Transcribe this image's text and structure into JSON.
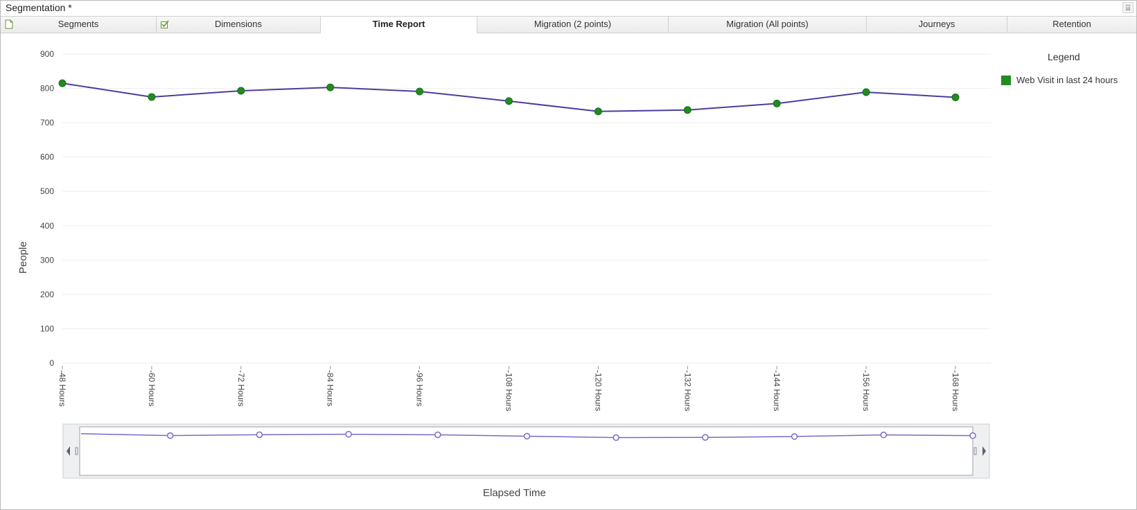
{
  "window": {
    "title": "Segmentation *",
    "pin_glyph": "⍓"
  },
  "tabs": [
    {
      "label": "Segments",
      "icon": "document-icon",
      "active": false
    },
    {
      "label": "Dimensions",
      "icon": "checklist-icon",
      "active": false
    },
    {
      "label": "Time Report",
      "icon": null,
      "active": true
    },
    {
      "label": "Migration (2 points)",
      "icon": null,
      "active": false
    },
    {
      "label": "Migration (All points)",
      "icon": null,
      "active": false
    },
    {
      "label": "Journeys",
      "icon": null,
      "active": false
    },
    {
      "label": "Retention",
      "icon": null,
      "active": false
    }
  ],
  "legend": {
    "title": "Legend",
    "items": [
      {
        "label": "Web Visit in last 24 hours",
        "color": "#228b22"
      }
    ]
  },
  "chart_data": {
    "type": "line",
    "categories": [
      "-48 Hours",
      "-60 Hours",
      "-72 Hours",
      "-84 Hours",
      "-96 Hours",
      "-108 Hours",
      "-120 Hours",
      "-132 Hours",
      "-144 Hours",
      "-156 Hours",
      "-168 Hours"
    ],
    "series": [
      {
        "name": "Web Visit in last 24 hours",
        "values": [
          815,
          775,
          793,
          803,
          791,
          763,
          733,
          737,
          756,
          789,
          774
        ],
        "line_color": "#4b3d9e",
        "marker_color": "#228b22"
      }
    ],
    "xlabel": "Elapsed Time",
    "ylabel": "People",
    "ylim": [
      0,
      900
    ],
    "yticks": [
      0,
      100,
      200,
      300,
      400,
      500,
      600,
      700,
      800,
      900
    ],
    "grid": true,
    "legend_position": "right"
  },
  "navigator": {
    "line_color": "#7b68c8"
  }
}
